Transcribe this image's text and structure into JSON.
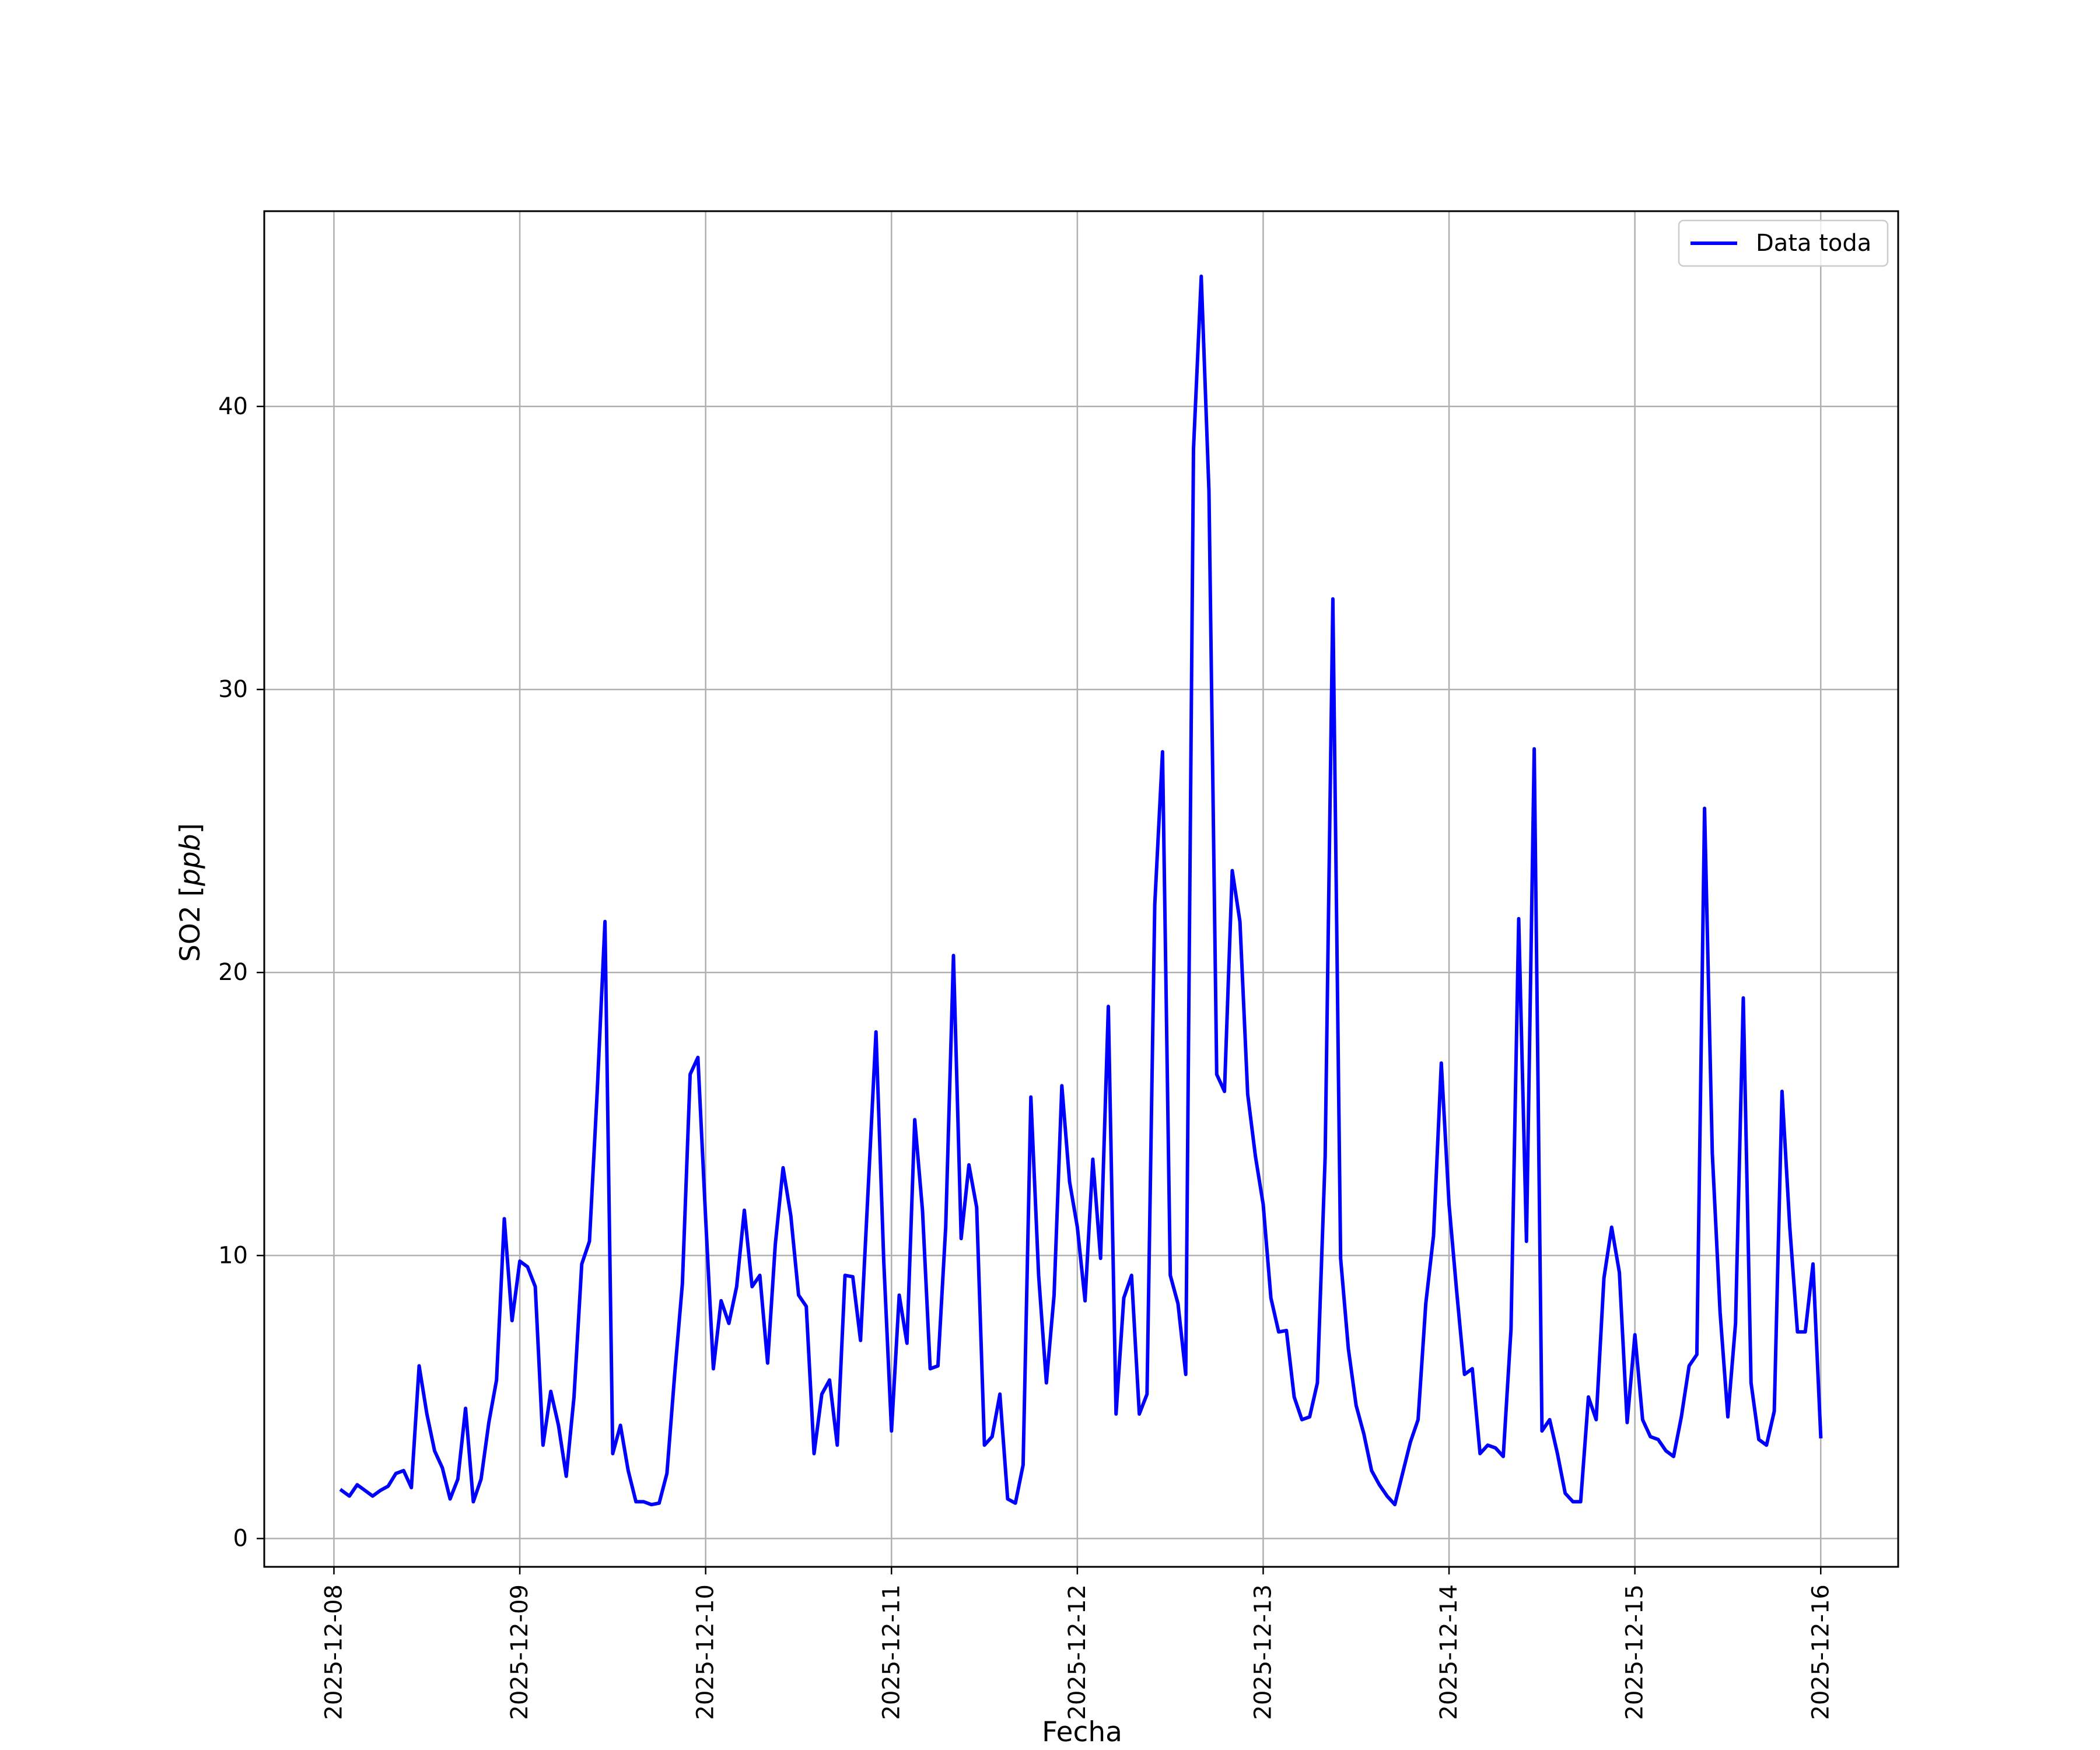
{
  "chart_data": {
    "type": "line",
    "title": "",
    "xlabel": "Fecha",
    "ylabel": "SO2 [ppb]",
    "ylabel_parts": {
      "prefix": "SO2 [",
      "italic": "ppb",
      "suffix": "]"
    },
    "grid": true,
    "legend_position": "top-right",
    "x_range": [
      "2025-12-07T15:00",
      "2025-12-16T10:00"
    ],
    "ylim": [
      -1.0,
      46.9
    ],
    "x_ticks": [
      "2025-12-08",
      "2025-12-09",
      "2025-12-10",
      "2025-12-11",
      "2025-12-12",
      "2025-12-13",
      "2025-12-14",
      "2025-12-15",
      "2025-12-16"
    ],
    "y_ticks": [
      0,
      10,
      20,
      30,
      40
    ],
    "series": [
      {
        "name": "Data toda",
        "color": "#0000ff",
        "x_start": "2025-12-08T01:00",
        "x_step_hours": 1,
        "values": [
          1.7,
          1.5,
          1.9,
          1.7,
          1.5,
          1.7,
          1.85,
          2.3,
          2.4,
          1.8,
          6.1,
          4.4,
          3.1,
          2.5,
          1.4,
          2.1,
          4.6,
          1.3,
          2.1,
          4.1,
          5.6,
          11.3,
          7.7,
          9.8,
          9.6,
          8.9,
          3.3,
          5.2,
          4.0,
          2.2,
          5.0,
          9.7,
          10.5,
          15.8,
          21.8,
          3.0,
          4.0,
          2.4,
          1.3,
          1.3,
          1.2,
          1.25,
          2.3,
          5.8,
          9.0,
          16.4,
          17.0,
          11.3,
          6.0,
          8.4,
          7.6,
          8.9,
          11.6,
          8.9,
          9.3,
          6.2,
          10.4,
          13.1,
          11.4,
          8.6,
          8.2,
          3.0,
          5.1,
          5.6,
          3.3,
          9.3,
          9.25,
          7.0,
          12.4,
          17.9,
          9.8,
          3.8,
          8.6,
          6.9,
          14.8,
          11.6,
          6.0,
          6.1,
          11.0,
          20.6,
          10.6,
          13.2,
          11.7,
          3.3,
          3.6,
          5.1,
          1.4,
          1.25,
          2.6,
          15.6,
          9.3,
          5.5,
          8.6,
          16.0,
          12.6,
          11.0,
          8.4,
          13.4,
          9.9,
          18.8,
          4.4,
          8.5,
          9.3,
          4.4,
          5.1,
          22.4,
          27.8,
          9.3,
          8.3,
          5.8,
          38.5,
          44.6,
          37.0,
          16.4,
          15.8,
          23.6,
          21.8,
          15.7,
          13.5,
          11.8,
          8.5,
          7.3,
          7.35,
          5.0,
          4.2,
          4.3,
          5.5,
          13.5,
          33.2,
          9.9,
          6.7,
          4.7,
          3.7,
          2.4,
          1.9,
          1.5,
          1.2,
          2.3,
          3.4,
          4.2,
          8.3,
          10.7,
          16.8,
          11.8,
          8.7,
          5.8,
          6.0,
          3.0,
          3.3,
          3.2,
          2.9,
          7.4,
          21.9,
          10.5,
          27.9,
          3.8,
          4.2,
          3.0,
          1.6,
          1.3,
          1.3,
          5.0,
          4.2,
          9.2,
          11.0,
          9.4,
          4.1,
          7.2,
          4.2,
          3.6,
          3.5,
          3.1,
          2.9,
          4.3,
          6.1,
          6.5,
          25.8,
          13.6,
          8.0,
          4.3,
          7.6,
          19.1,
          5.5,
          3.5,
          3.3,
          4.5,
          15.8,
          11.0,
          7.3,
          7.3,
          9.7,
          3.6
        ]
      }
    ]
  }
}
